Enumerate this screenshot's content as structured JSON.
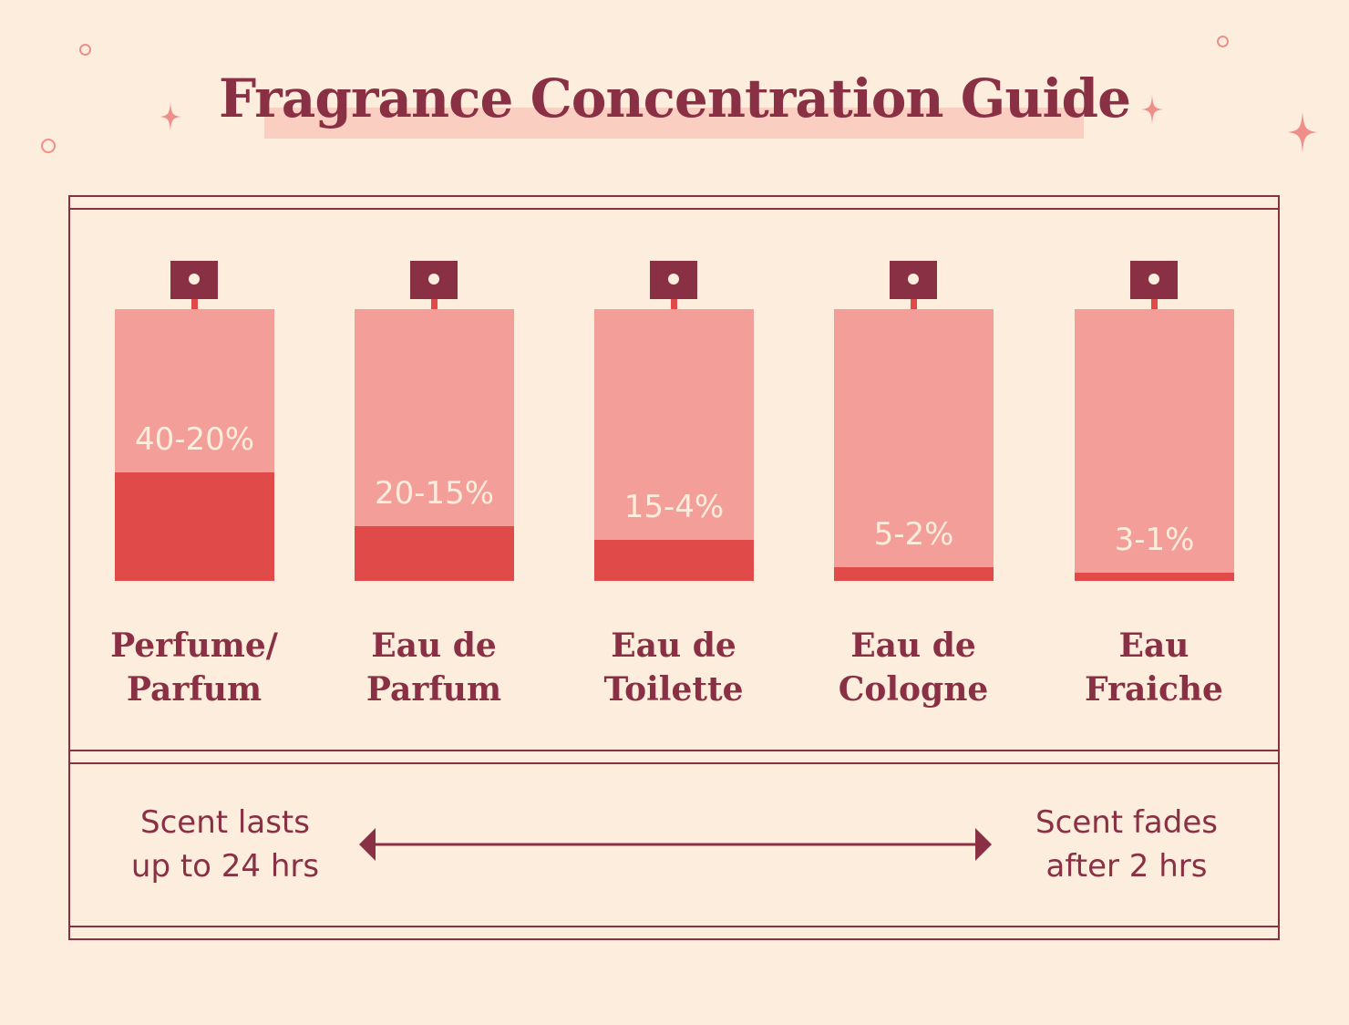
{
  "title": "Fragrance Concentration Guide",
  "colors": {
    "background": "#FDEDDD",
    "accent_dark": "#8A3045",
    "bottle_light": "#F49E9A",
    "bottle_fill": "#E04A48",
    "title_band": "#FACFC2"
  },
  "bottles": [
    {
      "label_line1": "Perfume/",
      "label_line2": "Parfum",
      "percent": "40-20%",
      "fill_fraction": 0.4
    },
    {
      "label_line1": "Eau de",
      "label_line2": "Parfum",
      "percent": "20-15%",
      "fill_fraction": 0.2
    },
    {
      "label_line1": "Eau de",
      "label_line2": "Toilette",
      "percent": "15-4%",
      "fill_fraction": 0.15
    },
    {
      "label_line1": "Eau de",
      "label_line2": "Cologne",
      "percent": "5-2%",
      "fill_fraction": 0.05
    },
    {
      "label_line1": "Eau",
      "label_line2": "Fraiche",
      "percent": "3-1%",
      "fill_fraction": 0.03
    }
  ],
  "scale": {
    "left_line1": "Scent lasts",
    "left_line2": "up to 24 hrs",
    "right_line1": "Scent fades",
    "right_line2": "after 2 hrs",
    "arrow_icon": "double-arrow-icon"
  }
}
